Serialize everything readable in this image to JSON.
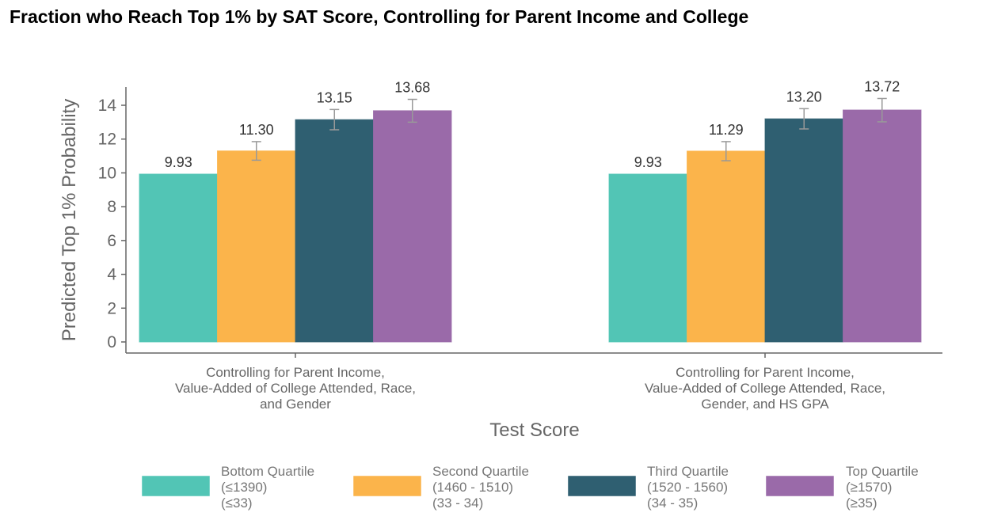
{
  "chart_data": {
    "type": "bar",
    "title": "Fraction who Reach Top 1% by SAT Score, Controlling for Parent Income and College",
    "xlabel": "Test Score",
    "ylabel": "Predicted Top 1% Probability",
    "ylim": [
      0,
      15
    ],
    "yticks": [
      0,
      2,
      4,
      6,
      8,
      10,
      12,
      14
    ],
    "grid": false,
    "legend_position": "bottom",
    "categories": [
      [
        "Controlling for Parent Income,",
        "Value-Added of College Attended, Race,",
        "and Gender"
      ],
      [
        "Controlling for Parent Income,",
        "Value-Added of College Attended, Race,",
        "Gender, and HS GPA"
      ]
    ],
    "series": [
      {
        "name": "Bottom Quartile",
        "legend_lines": [
          "Bottom Quartile",
          "(≤1390)",
          "(≤33)"
        ],
        "color": "#52c5b5",
        "values": [
          9.93,
          9.93
        ],
        "labels": [
          "9.93",
          "9.93"
        ],
        "error": [
          null,
          null
        ]
      },
      {
        "name": "Second Quartile",
        "legend_lines": [
          "Second Quartile",
          "(1460 - 1510)",
          "(33 - 34)"
        ],
        "color": "#fbb44b",
        "values": [
          11.3,
          11.29
        ],
        "labels": [
          "11.30",
          "11.29"
        ],
        "error": [
          [
            10.75,
            11.85
          ],
          [
            10.72,
            11.85
          ]
        ]
      },
      {
        "name": "Third Quartile",
        "legend_lines": [
          "Third Quartile",
          "(1520 - 1560)",
          "(34 - 35)"
        ],
        "color": "#2f5f71",
        "values": [
          13.15,
          13.2
        ],
        "labels": [
          "13.15",
          "13.20"
        ],
        "error": [
          [
            12.55,
            13.75
          ],
          [
            12.6,
            13.8
          ]
        ]
      },
      {
        "name": "Top Quartile",
        "legend_lines": [
          "Top Quartile",
          "(≥1570)",
          "(≥35)"
        ],
        "color": "#9a6aa9",
        "values": [
          13.68,
          13.72
        ],
        "labels": [
          "13.68",
          "13.72"
        ],
        "error": [
          [
            13.0,
            14.35
          ],
          [
            13.02,
            14.4
          ]
        ]
      }
    ]
  }
}
